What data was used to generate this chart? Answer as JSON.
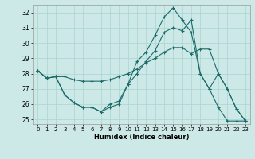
{
  "xlabel": "Humidex (Indice chaleur)",
  "bg_color": "#cce9e7",
  "line_color": "#1c6b68",
  "grid_color": "#aad4d2",
  "xlim": [
    -0.5,
    23.5
  ],
  "ylim": [
    24.7,
    32.5
  ],
  "xticks": [
    0,
    1,
    2,
    3,
    4,
    5,
    6,
    7,
    8,
    9,
    10,
    11,
    12,
    13,
    14,
    15,
    16,
    17,
    18,
    19,
    20,
    21,
    22,
    23
  ],
  "yticks": [
    25,
    26,
    27,
    28,
    29,
    30,
    31,
    32
  ],
  "line1_x": [
    0,
    1,
    2,
    3,
    4,
    5,
    6,
    7,
    8,
    9,
    10,
    11,
    12,
    13,
    14,
    15,
    16,
    17,
    18,
    19,
    20,
    21,
    22,
    23
  ],
  "line1_y": [
    28.2,
    27.7,
    27.8,
    27.8,
    27.6,
    27.5,
    27.5,
    27.5,
    27.6,
    27.8,
    28.0,
    28.3,
    28.7,
    29.0,
    29.4,
    29.7,
    29.7,
    29.3,
    29.6,
    29.6,
    28.0,
    27.0,
    25.7,
    24.9
  ],
  "line2_x": [
    0,
    1,
    2,
    3,
    4,
    5,
    6,
    7,
    8,
    9,
    10,
    11,
    12,
    13,
    14,
    15,
    16,
    17,
    18,
    19,
    20,
    21,
    22,
    23
  ],
  "line2_y": [
    28.2,
    27.7,
    27.8,
    26.6,
    26.1,
    25.8,
    25.8,
    25.5,
    25.8,
    26.0,
    27.3,
    28.0,
    28.8,
    29.5,
    30.7,
    31.0,
    30.8,
    31.5,
    28.0,
    27.0,
    28.0,
    27.0,
    25.7,
    24.9
  ],
  "line3_x": [
    0,
    1,
    2,
    3,
    4,
    5,
    6,
    7,
    8,
    9,
    10,
    11,
    12,
    13,
    14,
    15,
    16,
    17,
    18,
    19,
    20,
    21,
    22,
    23
  ],
  "line3_y": [
    28.2,
    27.7,
    27.8,
    26.6,
    26.1,
    25.8,
    25.8,
    25.5,
    26.0,
    26.2,
    27.3,
    28.8,
    29.4,
    30.5,
    31.7,
    32.3,
    31.5,
    30.7,
    28.0,
    27.0,
    25.8,
    24.9,
    24.9,
    24.9
  ]
}
